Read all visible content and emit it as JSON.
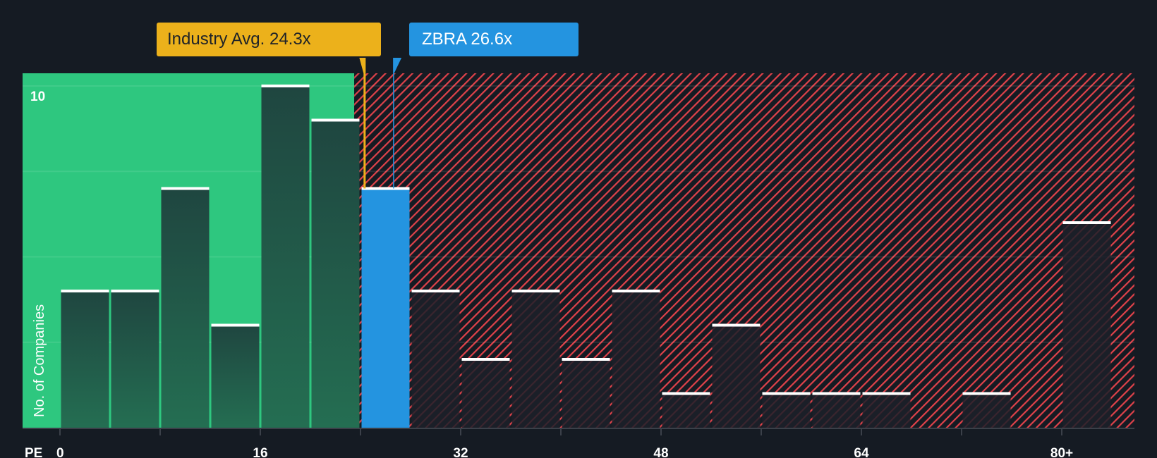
{
  "callouts": {
    "industry": {
      "label": "Industry Avg. 24.3x",
      "value": 24.3,
      "color": "#ecb11b"
    },
    "company": {
      "label": "ZBRA 26.6x",
      "ticker": "ZBRA",
      "value": 26.6,
      "color": "#2494e0"
    }
  },
  "axis": {
    "x_label": "PE",
    "y_label": "No. of Companies",
    "y_top_tick": "10",
    "x_ticks": [
      {
        "value": 0,
        "label": "0"
      },
      {
        "value": 16,
        "label": "16"
      },
      {
        "value": 32,
        "label": "32"
      },
      {
        "value": 48,
        "label": "48"
      },
      {
        "value": 64,
        "label": "64"
      },
      {
        "value": 80,
        "label": "80+"
      }
    ]
  },
  "colors": {
    "background": "#151b23",
    "undervalued_zone": "#2ec77f",
    "overvalued_hatch": "#e0424a",
    "bar_in_green": "#21473f",
    "bar_in_red": "#1c2029",
    "highlight_bar": "#2494e0",
    "bar_cap": "#ffffff"
  },
  "chart_data": {
    "type": "bar",
    "title": "",
    "xlabel": "PE",
    "ylabel": "No. of Companies",
    "ylim": [
      0,
      10.4
    ],
    "xlim": [
      0,
      82
    ],
    "bin_width": 4,
    "categories": [
      "0-4",
      "4-8",
      "8-12",
      "12-16",
      "16-20",
      "20-24",
      "24-28",
      "28-32",
      "32-36",
      "36-40",
      "40-44",
      "44-48",
      "48-52",
      "52-56",
      "56-60",
      "60-64",
      "64-68",
      "68-72",
      "72-76",
      "76-80",
      "80+"
    ],
    "values": [
      4,
      4,
      7,
      3,
      10,
      9,
      7,
      4,
      2,
      4,
      2,
      4,
      1,
      3,
      1,
      1,
      1,
      0,
      1,
      0,
      6
    ],
    "highlight_bin": "24-28",
    "annotations": [
      {
        "type": "vline",
        "x": 24.3,
        "label": "Industry Avg. 24.3x"
      },
      {
        "type": "vline",
        "x": 26.6,
        "label": "ZBRA 26.6x"
      }
    ],
    "gridlines_y": [
      2.5,
      5,
      7.5,
      10
    ],
    "zones": [
      {
        "name": "undervalued",
        "from": 0,
        "to": 23.5,
        "style": "solid green"
      },
      {
        "name": "overvalued",
        "from": 23.5,
        "to": 82,
        "style": "red hatch"
      }
    ]
  }
}
